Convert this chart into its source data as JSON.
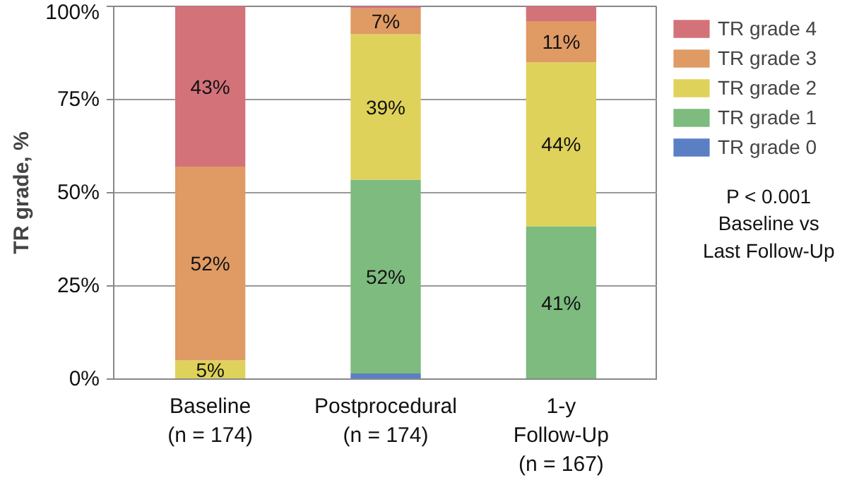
{
  "chart_data": {
    "type": "bar",
    "stacked": true,
    "ylabel": "TR grade, %",
    "categories": [
      "Baseline\n(n = 174)",
      "Postprocedural\n(n = 174)",
      "1-y\nFollow-Up\n(n = 167)"
    ],
    "series": [
      {
        "name": "TR grade 0",
        "color": "#5b7fc4",
        "values": [
          0,
          1.5,
          0
        ],
        "value_labels": [
          null,
          null,
          null
        ]
      },
      {
        "name": "TR grade 1",
        "color": "#7dbb7f",
        "values": [
          0,
          52,
          41
        ],
        "value_labels": [
          null,
          "52%",
          "41%"
        ]
      },
      {
        "name": "TR grade 2",
        "color": "#dfd25a",
        "values": [
          5,
          39,
          44
        ],
        "value_labels": [
          "5%",
          "39%",
          "44%"
        ]
      },
      {
        "name": "TR grade 3",
        "color": "#e09a64",
        "values": [
          52,
          7,
          11
        ],
        "value_labels": [
          "52%",
          "7%",
          "11%"
        ]
      },
      {
        "name": "TR grade 4",
        "color": "#d4727a",
        "values": [
          43,
          0.5,
          4
        ],
        "value_labels": [
          "43%",
          null,
          null
        ]
      }
    ],
    "ylim": [
      0,
      100
    ],
    "yticks": [
      {
        "value": 0,
        "label": "0%"
      },
      {
        "value": 25,
        "label": "25%"
      },
      {
        "value": 50,
        "label": "50%"
      },
      {
        "value": 75,
        "label": "75%"
      },
      {
        "value": 100,
        "label": "100%"
      }
    ],
    "grid": "y",
    "legend": "top right",
    "annotations": [
      "P < 0.001\nBaseline vs\nLast Follow-Up"
    ]
  }
}
